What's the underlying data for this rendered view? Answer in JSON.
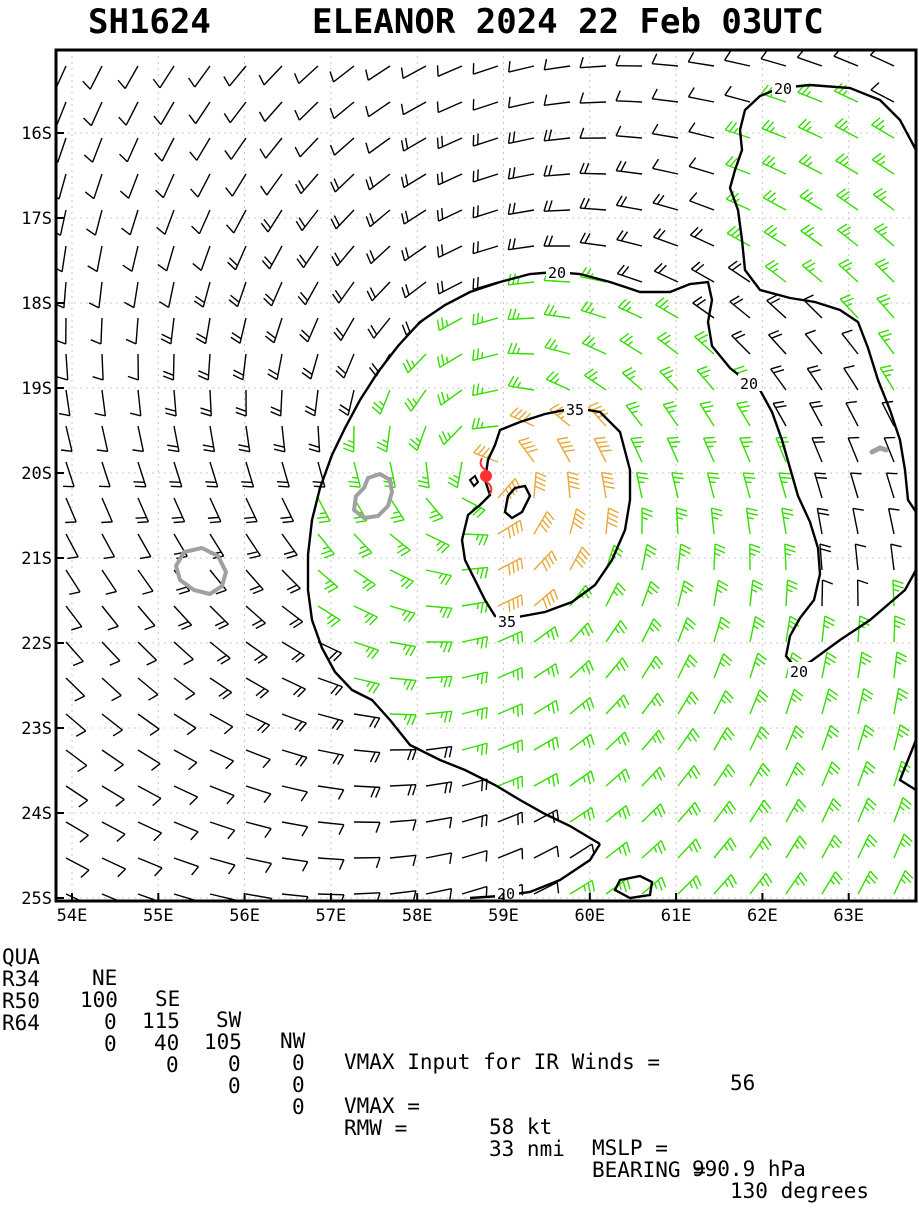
{
  "header": {
    "storm_id": "SH1624",
    "title": "ELEANOR 2024 22 Feb 03UTC"
  },
  "map": {
    "lat_labels": [
      "16S",
      "17S",
      "18S",
      "19S",
      "20S",
      "21S",
      "22S",
      "23S",
      "24S",
      "25S"
    ],
    "lon_labels": [
      "54E",
      "55E",
      "56E",
      "57E",
      "58E",
      "59E",
      "60E",
      "61E",
      "62E",
      "63E"
    ],
    "contour_labels": [
      "20",
      "20",
      "20",
      "35",
      "35",
      "20",
      "20"
    ],
    "colors": {
      "below_34kt": "#000000",
      "gale_34_49kt": "#33dd00",
      "storm_50_63kt": "#e8a838",
      "contour": "#000000",
      "land_outline": "#a0a0a0",
      "center_marker": "#ff3030"
    },
    "center_symbol": "tropical-cyclone-symbol"
  },
  "info": {
    "header_row": {
      "label": "QUA",
      "ne": "NE",
      "se": "SE",
      "sw": "SW",
      "nw": "NW"
    },
    "r34": {
      "label": "R34",
      "ne": "100",
      "se": "115",
      "sw": "105",
      "nw": "0"
    },
    "r50": {
      "label": "R50",
      "ne": "0",
      "se": "40",
      "sw": "0",
      "nw": "0"
    },
    "r64": {
      "label": "R64",
      "ne": "0",
      "se": "0",
      "sw": "0",
      "nw": "0"
    },
    "vmax_input_text": "VMAX Input for IR Winds =",
    "vmax_input_value": "56",
    "vmax_text": "VMAX =",
    "vmax_value": "58 kt",
    "mslp_text": "MSLP =",
    "mslp_value": "990.9 hPa",
    "rmw_text": "RMW =",
    "rmw_value": "33 nmi",
    "bearing_text": "BEARING =",
    "bearing_value": "130 degrees"
  }
}
